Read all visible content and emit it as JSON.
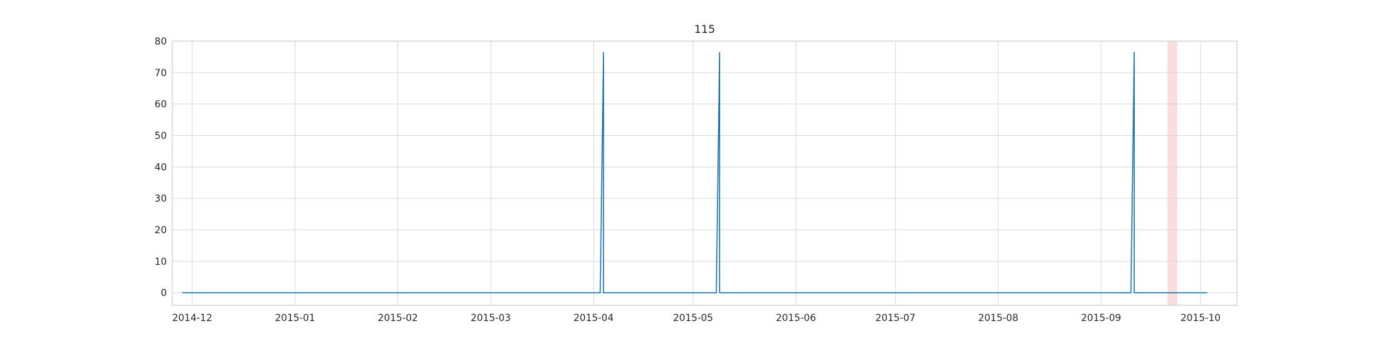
{
  "chart_data": {
    "type": "line",
    "title": "115",
    "xlabel": "",
    "ylabel": "",
    "xlim": [
      "2014-11-25",
      "2015-10-12"
    ],
    "ylim": [
      -4,
      80
    ],
    "x_tick_labels": [
      "2014-12",
      "2015-01",
      "2015-02",
      "2015-03",
      "2015-04",
      "2015-05",
      "2015-06",
      "2015-07",
      "2015-08",
      "2015-09",
      "2015-10"
    ],
    "x_ticks": [
      "2014-12-01",
      "2015-01-01",
      "2015-02-01",
      "2015-03-01",
      "2015-04-01",
      "2015-05-01",
      "2015-06-01",
      "2015-07-01",
      "2015-08-01",
      "2015-09-01",
      "2015-10-01"
    ],
    "y_ticks": [
      0,
      10,
      20,
      30,
      40,
      50,
      60,
      70,
      80
    ],
    "grid": true,
    "series": [
      {
        "points": [
          [
            "2014-11-28",
            0
          ],
          [
            "2015-04-03",
            0
          ],
          [
            "2015-04-04",
            76.5
          ],
          [
            "2015-04-04",
            0
          ],
          [
            "2015-05-08",
            0
          ],
          [
            "2015-05-09",
            76.5
          ],
          [
            "2015-05-09",
            0
          ],
          [
            "2015-09-10",
            0
          ],
          [
            "2015-09-11",
            76.5
          ],
          [
            "2015-09-11",
            0
          ],
          [
            "2015-10-03",
            0
          ]
        ]
      }
    ],
    "highlight_span": [
      "2015-09-21",
      "2015-09-24"
    ],
    "colors": {
      "line": "#1f77b4",
      "highlight": "#f4c2c6",
      "grid": "#d9d9d9",
      "frame": "#cccccc",
      "text": "#262626"
    }
  }
}
